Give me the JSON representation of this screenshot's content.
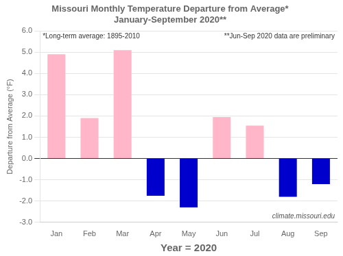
{
  "chart_data": {
    "type": "bar",
    "title": "Missouri Monthly Temperature Departure from Average*",
    "subtitle": "January-September 2020**",
    "categories": [
      "Jan",
      "Feb",
      "Mar",
      "Apr",
      "May",
      "Jun",
      "Jul",
      "Aug",
      "Sep"
    ],
    "values": [
      4.9,
      1.9,
      5.1,
      -1.75,
      -2.3,
      1.95,
      1.55,
      -1.8,
      -1.2
    ],
    "colors": [
      "#FFB6C8",
      "#FFB6C8",
      "#FFB6C8",
      "#0000CC",
      "#0000CC",
      "#FFB6C8",
      "#FFB6C8",
      "#0000CC",
      "#0000CC"
    ],
    "xlabel": "Year = 2020",
    "ylabel": "Departure from Average (°F)",
    "ylim": [
      -3.0,
      6.0
    ],
    "yticks": [
      {
        "value": -3.0,
        "label": "-3.0"
      },
      {
        "value": -2.0,
        "label": "-2.0"
      },
      {
        "value": -1.0,
        "label": "-1.0"
      },
      {
        "value": 0.0,
        "label": "0.0"
      },
      {
        "value": 1.0,
        "label": "1.0"
      },
      {
        "value": 2.0,
        "label": "2.0"
      },
      {
        "value": 3.0,
        "label": "3.0"
      },
      {
        "value": 4.0,
        "label": "4.0"
      },
      {
        "value": 5.0,
        "label": "5.0"
      },
      {
        "value": 6.0,
        "label": "6.0"
      }
    ],
    "grid": true,
    "annotations": [
      "*Long-term average: 1895-2010",
      "**Jun-Sep 2020 data are preliminary",
      "climate.missouri.edu"
    ]
  }
}
